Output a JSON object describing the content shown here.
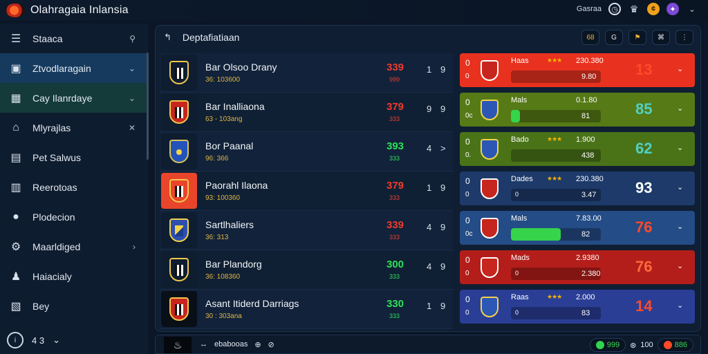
{
  "app": {
    "title": "Olahragaia Inlansia"
  },
  "topbar": {
    "user": "Gasraa",
    "icons": [
      "clock-icon",
      "trophy-icon",
      "coin-icon",
      "shield-icon",
      "chevron-down-icon"
    ]
  },
  "sidebar": {
    "items": [
      {
        "label": "Staaca",
        "icon": "menu-icon",
        "right": "search-icon"
      },
      {
        "label": "Ztvodlaragain",
        "icon": "chart-icon",
        "right": "chevron-down-icon"
      },
      {
        "label": "Cay Ilanrdaye",
        "icon": "map-icon",
        "right": "chevron-down-icon"
      },
      {
        "label": "Mlyrajlas",
        "icon": "home-icon",
        "right": "x-icon"
      },
      {
        "label": "Pet Salwus",
        "icon": "clipboard-icon"
      },
      {
        "label": "Reerotoas",
        "icon": "list-icon"
      },
      {
        "label": "Plodecion",
        "icon": "user-icon"
      },
      {
        "label": "Maarldiged",
        "icon": "gear-icon",
        "right": "chevron-right-icon"
      },
      {
        "label": "Haiacialy",
        "icon": "person-icon"
      },
      {
        "label": "Bey",
        "icon": "building-icon"
      }
    ],
    "footer_value": "4 3"
  },
  "main": {
    "title": "Deptafiatiaan",
    "head_icons": [
      "68",
      "G",
      "⚑",
      "⌘",
      "⋮"
    ]
  },
  "matches": [
    {
      "team": "Bar Olsoo Drany",
      "sub": "36: 103600",
      "score": "339",
      "score_sub": "999",
      "score_color": "red",
      "c1": "1",
      "c2": "9",
      "crest": "bw"
    },
    {
      "team": "Bar Inalliaona",
      "sub": "63 - 103ang",
      "score": "379",
      "score_sub": "333",
      "score_color": "red",
      "c1": "9",
      "c2": "9",
      "crest": "red"
    },
    {
      "team": "Bor Paanal",
      "sub": "96: 366",
      "score": "393",
      "score_sub": "333",
      "score_color": "green",
      "c1": "4",
      "c2": ">",
      "crest": "blue"
    },
    {
      "team": "Paorahl Ilaona",
      "sub": "93: 100360",
      "score": "379",
      "score_sub": "333",
      "score_color": "red",
      "c1": "1",
      "c2": "9",
      "crest": "bw"
    },
    {
      "team": "Sartlhaliers",
      "sub": "36: 313",
      "score": "339",
      "score_sub": "333",
      "score_color": "red",
      "c1": "4",
      "c2": "9",
      "crest": "yb"
    },
    {
      "team": "Bar Plandorg",
      "sub": "36: 108360",
      "score": "300",
      "score_sub": "333",
      "score_color": "green",
      "c1": "4",
      "c2": "9",
      "crest": "bw"
    },
    {
      "team": "Asant Itiderd Darriags",
      "sub": "30 : 303ana",
      "score": "330",
      "score_sub": "333",
      "score_color": "green",
      "c1": "1",
      "c2": "9",
      "crest": "red"
    }
  ],
  "odds": [
    {
      "l1": "0",
      "l2": "0",
      "label": "Haas",
      "stars": "★★★",
      "oval": "230.380",
      "sub": "9.80",
      "big": "13",
      "big_color": "#ff4a2a",
      "bg": "red",
      "fill": 0,
      "pill_text": ""
    },
    {
      "l1": "0",
      "l2": "0c",
      "label": "Mals",
      "stars": "",
      "oval": "0.1.80",
      "sub": "81",
      "big": "85",
      "big_color": "#4fd1c5",
      "bg": "olive",
      "fill": 0.1,
      "pill_text": ""
    },
    {
      "l1": "0",
      "l2": "0.",
      "label": "Bado",
      "stars": "★★★",
      "oval": "1.900",
      "sub": "438",
      "big": "62",
      "big_color": "#4fd1c5",
      "bg": "lime",
      "fill": 0,
      "pill_text": ""
    },
    {
      "l1": "0",
      "l2": "0",
      "label": "Dades",
      "stars": "★★★",
      "oval": "230.380",
      "sub": "3.47",
      "big": "93",
      "big_color": "#ffffff",
      "bg": "navy",
      "fill": 0,
      "pill_text": "0"
    },
    {
      "l1": "0",
      "l2": "0c",
      "label": "Mals",
      "stars": "",
      "oval": "7.83.00",
      "sub": "82",
      "big": "76",
      "big_color": "#ff4a2a",
      "bg": "blue",
      "fill": 0.55,
      "pill_text": ""
    },
    {
      "l1": "0",
      "l2": "0",
      "label": "Mads",
      "stars": "",
      "oval": "2.9380",
      "sub": "2.380",
      "big": "76",
      "big_color": "#ff6a3a",
      "bg": "crim",
      "fill": 0,
      "pill_text": "0"
    },
    {
      "l1": "0",
      "l2": "0",
      "label": "Raas",
      "stars": "★★★",
      "oval": "2.000",
      "sub": "83",
      "big": "14",
      "big_color": "#ff4a2a",
      "bg": "indigo",
      "fill": 0,
      "pill_text": "0"
    }
  ],
  "bottom": {
    "items": [
      "↔",
      "ebabooas",
      "⊕",
      "⊘"
    ],
    "right1": "999",
    "right2": "100",
    "right3": "886"
  }
}
